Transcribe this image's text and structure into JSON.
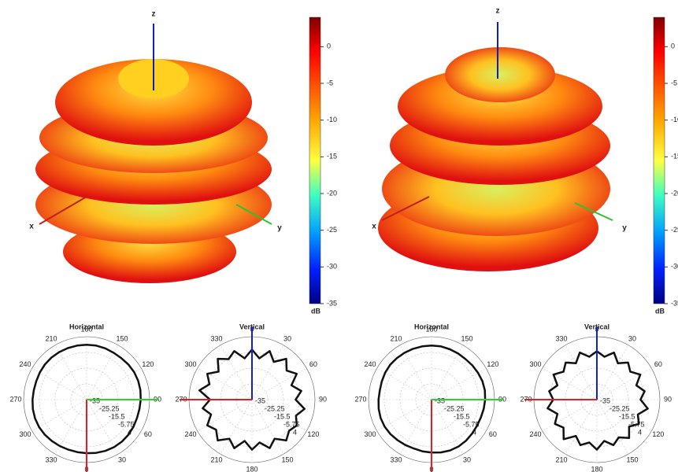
{
  "panels": [
    {
      "axis_labels": [
        "z",
        "x",
        "y"
      ],
      "colorbar": {
        "ticks": [
          0,
          -5,
          -10,
          -15,
          -20,
          -25,
          -30,
          -35
        ],
        "unit": "dB"
      }
    },
    {
      "axis_labels": [
        "z",
        "x",
        "y"
      ],
      "colorbar": {
        "ticks": [
          0,
          -5,
          -10,
          -15,
          -20,
          -25,
          -30,
          -35
        ],
        "unit": "dB"
      }
    }
  ],
  "polar_plots": [
    {
      "title": "Horizontal",
      "angle_labels": [
        "180",
        "150",
        "120",
        "90",
        "60",
        "30",
        "0",
        "330",
        "300",
        "270",
        "240",
        "210"
      ],
      "radius_ticks": [
        -35,
        -25.25,
        -15.5,
        -5.75,
        4
      ],
      "radii": [
        -1,
        -1,
        -1.2,
        -1.5,
        -1.5,
        -1.2,
        -1,
        -1,
        -1.2,
        -1.5,
        -1.8,
        -1.8,
        -1.5,
        -1.2,
        -1,
        -1,
        -1.2,
        -1.5,
        -1.8,
        -2,
        -2,
        -1.8,
        -1.5,
        -1.2,
        -1,
        -1,
        -1.2,
        -1.5,
        -1.8,
        -1.8,
        -1.5,
        -1.2,
        -1,
        -1,
        -1,
        -1
      ]
    },
    {
      "title": "Vertical",
      "angle_labels": [
        "0",
        "30",
        "60",
        "90",
        "120",
        "150",
        "180",
        "210",
        "240",
        "270",
        "300",
        "330"
      ],
      "radius_ticks": [
        -35,
        -25.25,
        -15.5,
        -5.75,
        4
      ],
      "radii": [
        -4,
        -9,
        -3,
        -8,
        -2,
        -7,
        -3,
        -9,
        -4,
        -8,
        -2,
        -6,
        -3,
        -5,
        -2,
        -7,
        -3,
        -8,
        -4,
        -9,
        -3,
        -7,
        -2,
        -6,
        -3,
        -8,
        -4,
        -9,
        -2,
        -7,
        -3,
        -8,
        -2,
        -6,
        -3,
        -9
      ]
    },
    {
      "title": "Horizontal",
      "angle_labels": [
        "180",
        "150",
        "120",
        "90",
        "60",
        "30",
        "0",
        "330",
        "300",
        "270",
        "240",
        "210"
      ],
      "radius_ticks": [
        -35,
        -25.25,
        -15.5,
        -5.75,
        4
      ],
      "radii": [
        -1.5,
        -1.5,
        -1.8,
        -2,
        -2.2,
        -2,
        -1.8,
        -1.5,
        -1.5,
        -1.8,
        -2.2,
        -2.5,
        -2.5,
        -2.2,
        -1.8,
        -1.5,
        -1.5,
        -1.8,
        -2.2,
        -2.5,
        -2.8,
        -2.5,
        -2.2,
        -1.8,
        -1.5,
        -1.5,
        -1.8,
        -2.2,
        -2.5,
        -2.2,
        -1.8,
        -1.5,
        -1.5,
        -1.5,
        -1.5,
        -1.5
      ]
    },
    {
      "title": "Vertical",
      "angle_labels": [
        "0",
        "30",
        "60",
        "90",
        "120",
        "150",
        "180",
        "210",
        "240",
        "270",
        "300",
        "330"
      ],
      "radius_ticks": [
        -35,
        -25.25,
        -15.5,
        -5.75,
        4
      ],
      "radii": [
        -5,
        -8,
        -4,
        -9,
        -5,
        -8,
        -4,
        -9,
        -5,
        -8,
        -3,
        -8,
        -5,
        -9,
        -4,
        -8,
        -5,
        -9,
        -4,
        -8,
        -5,
        -9,
        -3,
        -8,
        -5,
        -9,
        -4,
        -8,
        -5,
        -9,
        -4,
        -8,
        -5,
        -9,
        -4,
        -8
      ]
    }
  ]
}
